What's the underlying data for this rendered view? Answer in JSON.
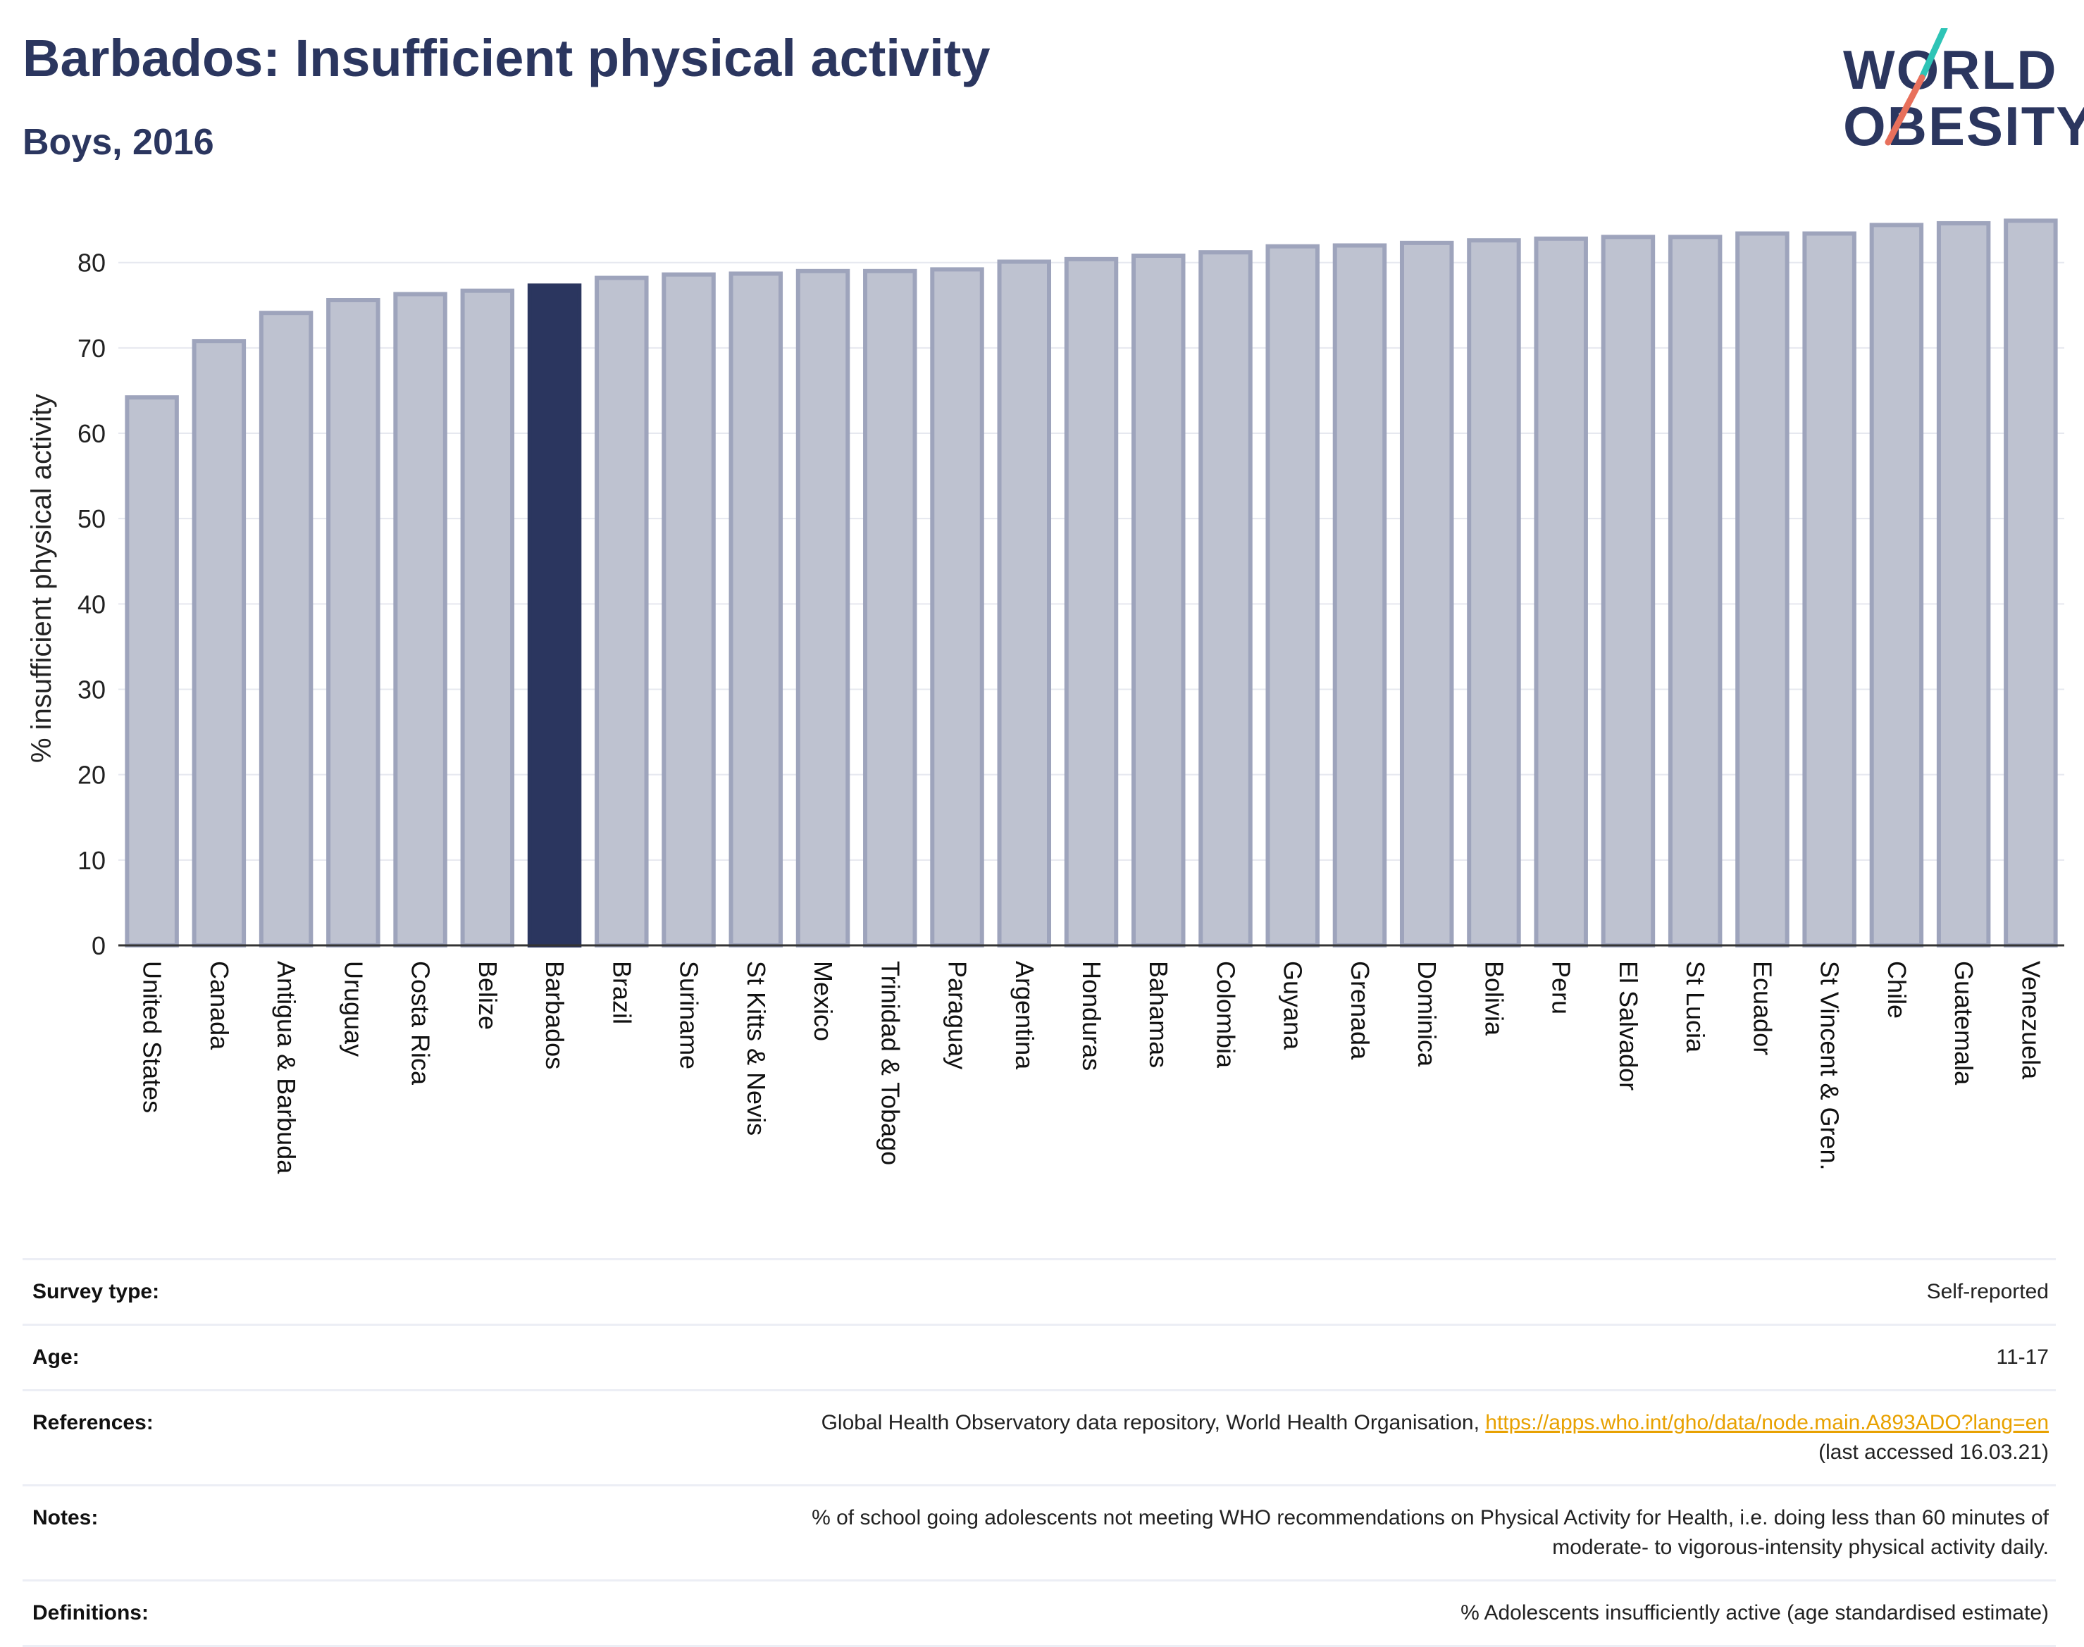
{
  "header": {
    "title": "Barbados: Insufficient physical activity",
    "subtitle": "Boys, 2016"
  },
  "logo": {
    "line1": "WORLD",
    "line2": "OBESITY"
  },
  "colors": {
    "highlight": "#2b365f",
    "bar": "#bec2d0",
    "bar_stroke": "#9ea4bc",
    "accent_teal": "#2ec4b6",
    "accent_coral": "#e8705c"
  },
  "chart_data": {
    "type": "bar",
    "title": "",
    "ylabel": "% insufficient physical activity",
    "ylim": [
      0,
      86
    ],
    "yticks": [
      0,
      10,
      20,
      30,
      40,
      50,
      60,
      70,
      80
    ],
    "grid": true,
    "highlight": "Barbados",
    "categories": [
      "United States",
      "Canada",
      "Antigua & Barbuda",
      "Uruguay",
      "Costa Rica",
      "Belize",
      "Barbados",
      "Brazil",
      "Suriname",
      "St Kitts & Nevis",
      "Mexico",
      "Trinidad & Tobago",
      "Paraguay",
      "Argentina",
      "Honduras",
      "Bahamas",
      "Colombia",
      "Guyana",
      "Grenada",
      "Dominica",
      "Bolivia",
      "Peru",
      "El Salvador",
      "St Lucia",
      "Ecuador",
      "St Vincent & Gren.",
      "Chile",
      "Guatemala",
      "Venezuela"
    ],
    "values": [
      64.2,
      70.8,
      74.1,
      75.6,
      76.3,
      76.7,
      77.3,
      78.2,
      78.6,
      78.7,
      79.0,
      79.0,
      79.2,
      80.1,
      80.4,
      80.8,
      81.2,
      81.9,
      82.0,
      82.3,
      82.6,
      82.8,
      83.0,
      83.0,
      83.4,
      83.4,
      84.4,
      84.6,
      84.9
    ]
  },
  "meta": {
    "rows": [
      {
        "label": "Survey type:",
        "value": "Self-reported"
      },
      {
        "label": "Age:",
        "value": "11-17"
      },
      {
        "label": "References:",
        "value": "Global Health Observatory data repository, World Health Organisation, ",
        "link": "https://apps.who.int/gho/data/node.main.A893ADO?lang=en",
        "value2": "(last accessed 16.03.21)"
      },
      {
        "label": "Notes:",
        "value": "% of school going adolescents not meeting WHO recommendations on Physical Activity for Health, i.e. doing less than 60 minutes of",
        "value2": "moderate- to vigorous-intensity physical activity daily."
      },
      {
        "label": "Definitions:",
        "value": "% Adolescents insufficiently active (age standardised estimate)"
      }
    ]
  }
}
